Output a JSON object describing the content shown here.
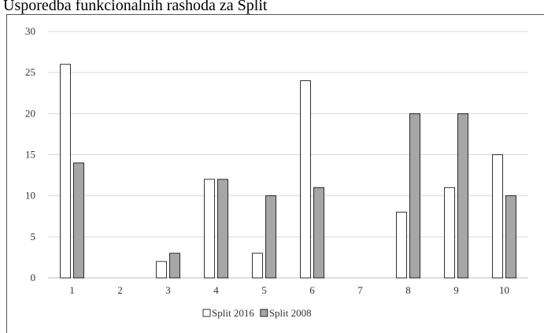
{
  "chart_data": {
    "type": "bar",
    "title": "Usporedba funkcionalnih rashoda za Split",
    "categories": [
      "1",
      "2",
      "3",
      "4",
      "5",
      "6",
      "7",
      "8",
      "9",
      "10"
    ],
    "series": [
      {
        "name": "Split 2016",
        "color": "#ffffff",
        "values": [
          26,
          0,
          2,
          12,
          3,
          24,
          0,
          8,
          11,
          15
        ]
      },
      {
        "name": "Split 2008",
        "color": "#a6a6a6",
        "values": [
          14,
          0,
          3,
          12,
          10,
          11,
          0,
          20,
          20,
          10
        ]
      }
    ],
    "ylim": [
      0,
      30
    ],
    "yticks": [
      0,
      5,
      10,
      15,
      20,
      25,
      30
    ],
    "grid": true,
    "legend": "bottom"
  }
}
